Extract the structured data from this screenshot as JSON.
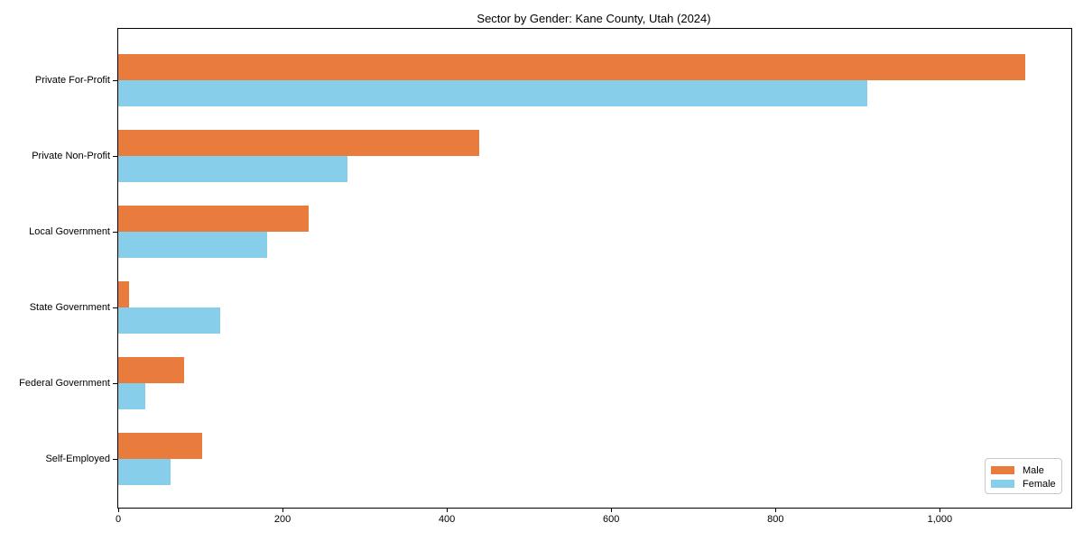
{
  "chart_data": {
    "type": "bar",
    "orientation": "horizontal",
    "title": "Sector by Gender: Kane County, Utah (2024)",
    "categories": [
      "Private For-Profit",
      "Private Non-Profit",
      "Local Government",
      "State Government",
      "Federal Government",
      "Self-Employed"
    ],
    "series": [
      {
        "name": "Male",
        "color": "#e97c3c",
        "values": [
          1104,
          439,
          232,
          13,
          80,
          102
        ]
      },
      {
        "name": "Female",
        "color": "#87ceeb",
        "values": [
          912,
          279,
          181,
          124,
          33,
          64
        ]
      }
    ],
    "xlabel": "",
    "ylabel": "",
    "xlim": [
      0,
      1160
    ],
    "xticks": [
      0,
      200,
      400,
      600,
      800,
      1000
    ],
    "xtick_labels": [
      "0",
      "200",
      "400",
      "600",
      "800",
      "1,000"
    ],
    "grid": false,
    "legend_position": "lower right",
    "background_color": "#ffffff",
    "spine_color": "#000000"
  }
}
